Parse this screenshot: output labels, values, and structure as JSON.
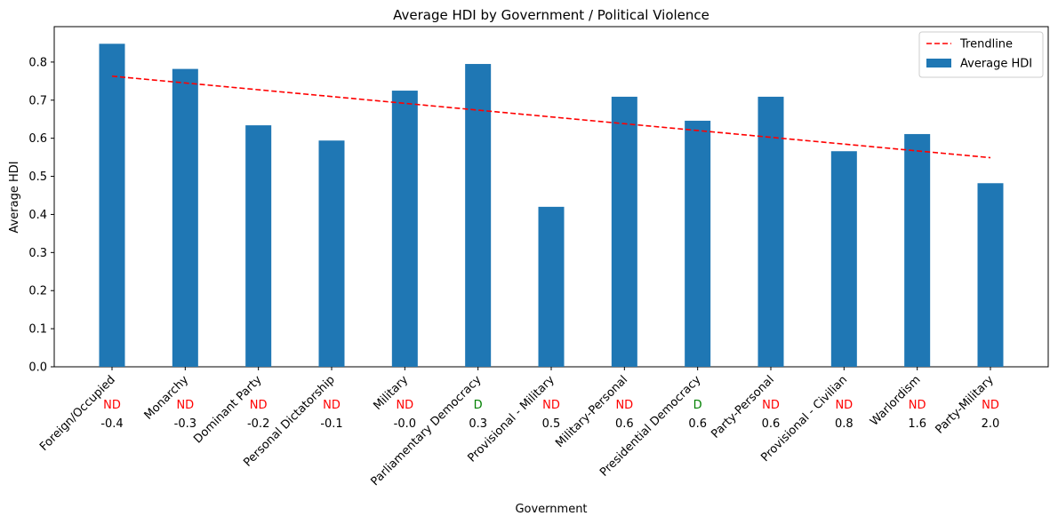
{
  "chart_data": {
    "type": "bar",
    "title": "Average HDI by Government / Political Violence",
    "xlabel": "Government",
    "ylabel": "Average HDI",
    "ylim": [
      0,
      0.893
    ],
    "yticks": [
      0.0,
      0.1,
      0.2,
      0.3,
      0.4,
      0.5,
      0.6,
      0.7,
      0.8
    ],
    "ytick_labels": [
      "0.0",
      "0.1",
      "0.2",
      "0.3",
      "0.4",
      "0.5",
      "0.6",
      "0.7",
      "0.8"
    ],
    "categories": [
      "Foreign/Occupied",
      "Monarchy",
      "Dominant Party",
      "Personal Dictatorship",
      "Military",
      "Parliamentary Democracy",
      "Provisional - Military",
      "Military-Personal",
      "Presidential Democracy",
      "Party-Personal",
      "Provisional - Civilian",
      "Warlordism",
      "Party-Military"
    ],
    "values": [
      0.848,
      0.782,
      0.634,
      0.594,
      0.725,
      0.795,
      0.42,
      0.709,
      0.646,
      0.709,
      0.566,
      0.611,
      0.482
    ],
    "democracy_flags": [
      "ND",
      "ND",
      "ND",
      "ND",
      "ND",
      "D",
      "ND",
      "ND",
      "D",
      "ND",
      "ND",
      "ND",
      "ND"
    ],
    "violence_values": [
      "-0.4",
      "-0.3",
      "-0.2",
      "-0.1",
      "-0.0",
      "0.3",
      "0.5",
      "0.6",
      "0.6",
      "0.6",
      "0.8",
      "1.6",
      "2.0"
    ],
    "trendline": {
      "start": 0.763,
      "end": 0.549
    },
    "legend": {
      "placement": "top-right",
      "items": [
        {
          "label": "Trendline",
          "kind": "dashed-line",
          "color": "#ff0000"
        },
        {
          "label": "Average HDI",
          "kind": "bar",
          "color": "#1f77b4"
        }
      ]
    },
    "colors": {
      "bar": "#1f77b4",
      "trend": "#ff0000",
      "nd": "#ff0000",
      "d": "#008000"
    },
    "grid": false
  }
}
